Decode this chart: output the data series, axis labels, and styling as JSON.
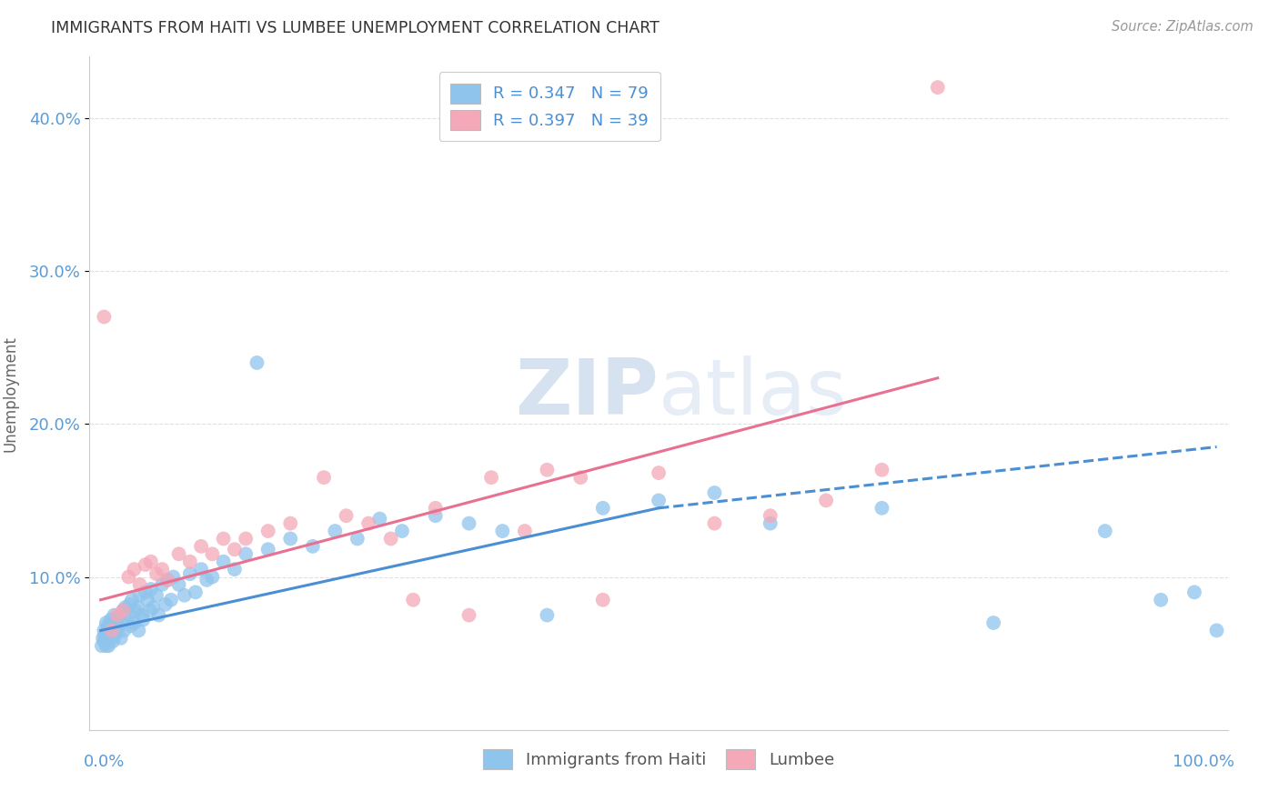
{
  "title": "IMMIGRANTS FROM HAITI VS LUMBEE UNEMPLOYMENT CORRELATION CHART",
  "source": "Source: ZipAtlas.com",
  "ylabel": "Unemployment",
  "blue_R": 0.347,
  "blue_N": 79,
  "pink_R": 0.397,
  "pink_N": 39,
  "blue_color": "#8FC4EC",
  "pink_color": "#F4A8B8",
  "blue_line_color": "#4A8FD4",
  "pink_line_color": "#E87090",
  "grid_color": "#DDDDDD",
  "axis_label_color": "#5B9BD5",
  "blue_scatter_x": [
    0.1,
    0.2,
    0.3,
    0.3,
    0.4,
    0.5,
    0.5,
    0.6,
    0.7,
    0.8,
    0.9,
    1.0,
    1.1,
    1.2,
    1.3,
    1.4,
    1.5,
    1.6,
    1.7,
    1.8,
    2.0,
    2.1,
    2.2,
    2.3,
    2.5,
    2.6,
    2.7,
    2.8,
    3.0,
    3.1,
    3.3,
    3.4,
    3.5,
    3.7,
    3.8,
    4.0,
    4.2,
    4.4,
    4.5,
    4.7,
    5.0,
    5.2,
    5.5,
    5.8,
    6.0,
    6.3,
    6.5,
    7.0,
    7.5,
    8.0,
    8.5,
    9.0,
    9.5,
    10.0,
    11.0,
    12.0,
    13.0,
    14.0,
    15.0,
    17.0,
    19.0,
    21.0,
    23.0,
    25.0,
    27.0,
    30.0,
    33.0,
    36.0,
    40.0,
    45.0,
    50.0,
    55.0,
    60.0,
    70.0,
    80.0,
    90.0,
    95.0,
    98.0,
    100.0
  ],
  "blue_scatter_y": [
    5.5,
    6.0,
    5.8,
    6.5,
    6.2,
    5.5,
    7.0,
    6.8,
    5.5,
    6.5,
    7.2,
    6.0,
    5.8,
    7.5,
    6.2,
    7.0,
    6.5,
    6.8,
    7.5,
    6.0,
    7.8,
    6.5,
    8.0,
    7.2,
    7.5,
    8.2,
    6.8,
    8.5,
    7.0,
    7.8,
    8.0,
    6.5,
    8.8,
    7.5,
    7.2,
    9.0,
    8.5,
    7.8,
    9.2,
    8.0,
    8.8,
    7.5,
    9.5,
    8.2,
    9.8,
    8.5,
    10.0,
    9.5,
    8.8,
    10.2,
    9.0,
    10.5,
    9.8,
    10.0,
    11.0,
    10.5,
    11.5,
    24.0,
    11.8,
    12.5,
    12.0,
    13.0,
    12.5,
    13.8,
    13.0,
    14.0,
    13.5,
    13.0,
    7.5,
    14.5,
    15.0,
    15.5,
    13.5,
    14.5,
    7.0,
    13.0,
    8.5,
    9.0,
    6.5
  ],
  "pink_scatter_x": [
    0.3,
    1.0,
    1.5,
    2.0,
    2.5,
    3.0,
    3.5,
    4.0,
    4.5,
    5.0,
    5.5,
    6.0,
    7.0,
    8.0,
    9.0,
    10.0,
    11.0,
    12.0,
    13.0,
    15.0,
    17.0,
    20.0,
    22.0,
    24.0,
    26.0,
    28.0,
    30.0,
    33.0,
    35.0,
    38.0,
    40.0,
    43.0,
    45.0,
    50.0,
    55.0,
    60.0,
    65.0,
    70.0,
    75.0
  ],
  "pink_scatter_y": [
    27.0,
    6.5,
    7.5,
    7.8,
    10.0,
    10.5,
    9.5,
    10.8,
    11.0,
    10.2,
    10.5,
    9.8,
    11.5,
    11.0,
    12.0,
    11.5,
    12.5,
    11.8,
    12.5,
    13.0,
    13.5,
    16.5,
    14.0,
    13.5,
    12.5,
    8.5,
    14.5,
    7.5,
    16.5,
    13.0,
    17.0,
    16.5,
    8.5,
    16.8,
    13.5,
    14.0,
    15.0,
    17.0,
    42.0
  ],
  "blue_line_x0": 0,
  "blue_line_x_solid_end": 50,
  "blue_line_x_dash_end": 100,
  "blue_line_y0": 6.5,
  "blue_line_y_solid_end": 14.5,
  "blue_line_y_dash_end": 18.5,
  "pink_line_x0": 0,
  "pink_line_x_end": 75,
  "pink_line_y0": 8.5,
  "pink_line_y_end": 23.0,
  "ylim_min": 0,
  "ylim_max": 44,
  "xlim_min": -1,
  "xlim_max": 101,
  "ytick_vals": [
    10,
    20,
    30,
    40
  ],
  "ytick_labels": [
    "10.0%",
    "20.0%",
    "30.0%",
    "40.0%"
  ]
}
